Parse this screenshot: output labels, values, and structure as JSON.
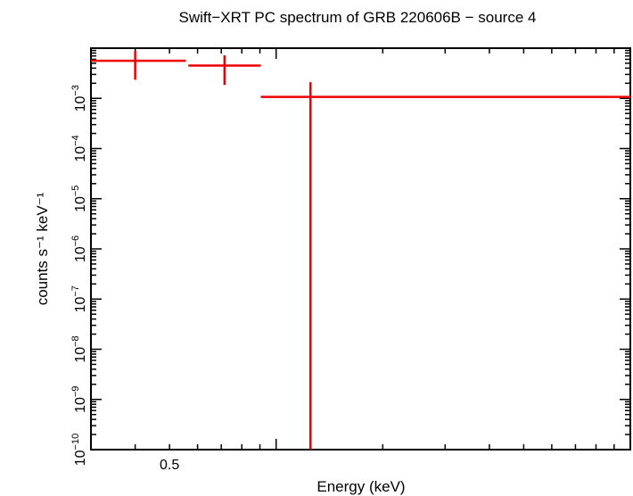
{
  "chart_data": {
    "type": "scatter",
    "title": "Swift−XRT PC spectrum of GRB 220606B − source 4",
    "xlabel": "Energy (keV)",
    "ylabel": "counts s⁻¹ keV⁻¹",
    "xscale": "log",
    "yscale": "log",
    "xlim": [
      0.3,
      10
    ],
    "ylim": [
      1e-10,
      0.01
    ],
    "x_tick_labels": [
      {
        "value": 0.5,
        "label": "0.5"
      }
    ],
    "y_tick_labels": [
      {
        "value": 1e-10,
        "base": "10",
        "exp": "−10"
      },
      {
        "value": 1e-09,
        "base": "10",
        "exp": "−9"
      },
      {
        "value": 1e-08,
        "base": "10",
        "exp": "−8"
      },
      {
        "value": 1e-07,
        "base": "10",
        "exp": "−7"
      },
      {
        "value": 1e-06,
        "base": "10",
        "exp": "−6"
      },
      {
        "value": 1e-05,
        "base": "10",
        "exp": "−5"
      },
      {
        "value": 0.0001,
        "base": "10",
        "exp": "−4"
      },
      {
        "value": 0.001,
        "base": "10",
        "exp": "−3"
      }
    ],
    "grid": false,
    "colors": {
      "data": "#ee0000",
      "axes": "#000000"
    },
    "series": [
      {
        "points": [
          {
            "x": 0.4,
            "x_lo": 0.3,
            "x_hi": 0.556,
            "y": 0.0056,
            "y_lo": 0.00235,
            "y_hi": 0.0088
          },
          {
            "x": 0.715,
            "x_lo": 0.565,
            "x_hi": 0.905,
            "y": 0.0045,
            "y_lo": 0.00185,
            "y_hi": 0.0072
          },
          {
            "x": 1.25,
            "x_lo": 0.905,
            "x_hi": 10,
            "y": 0.00107,
            "y_lo": 1e-10,
            "y_hi": 0.0021
          }
        ]
      }
    ]
  }
}
